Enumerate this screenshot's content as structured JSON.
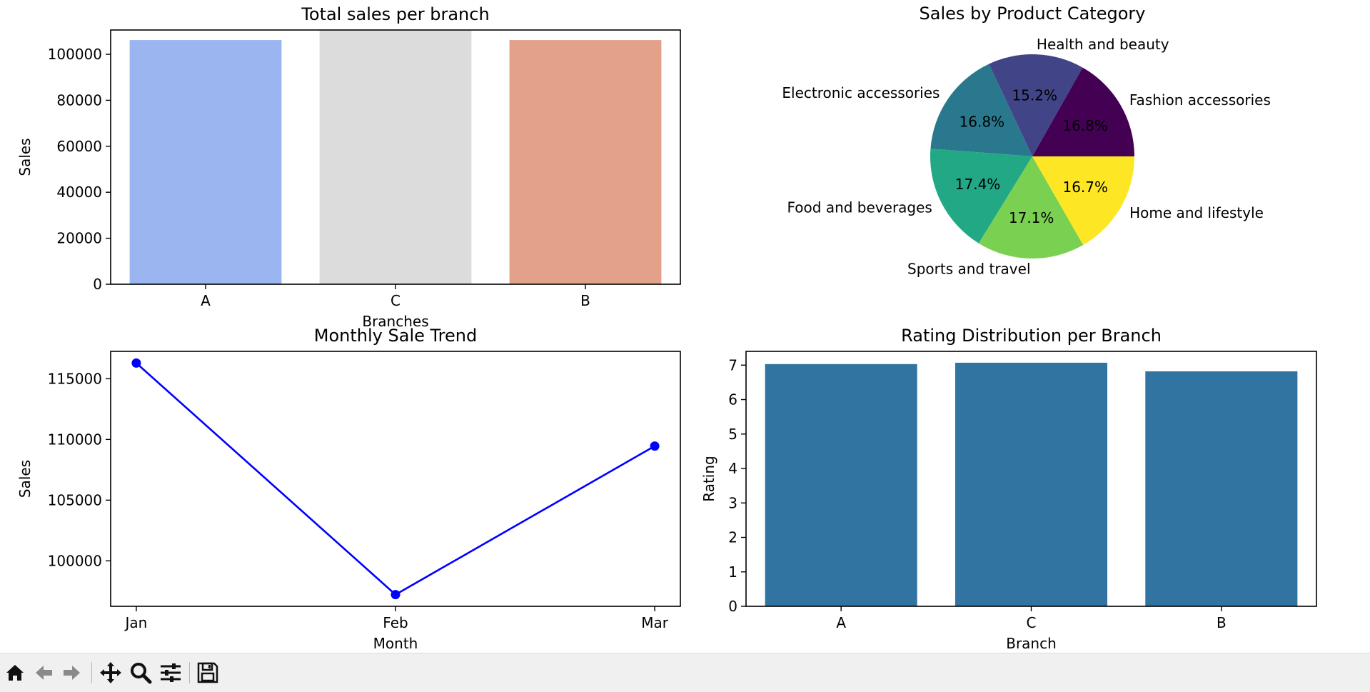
{
  "toolbar": {
    "buttons": [
      {
        "icon": "home-icon"
      },
      {
        "icon": "back-arrow-icon"
      },
      {
        "icon": "forward-arrow-icon"
      },
      {
        "icon": "pan-icon"
      },
      {
        "icon": "zoom-icon"
      },
      {
        "icon": "configure-subplots-icon"
      },
      {
        "icon": "save-icon"
      }
    ]
  },
  "chart_data": [
    {
      "type": "bar",
      "title": "Total sales per branch",
      "xlabel": "Branches",
      "ylabel": "Sales",
      "categories": [
        "A",
        "C",
        "B"
      ],
      "values": [
        106200,
        110568,
        106198
      ],
      "colors": [
        "#9ab5f0",
        "#dcdcdc",
        "#e4a18a"
      ],
      "ylim": [
        0,
        110568
      ],
      "yticks": [
        0,
        20000,
        40000,
        60000,
        80000,
        100000
      ],
      "ytick_labels": [
        "0",
        "20000",
        "40000",
        "60000",
        "80000",
        "100000"
      ],
      "grid": false
    },
    {
      "type": "pie",
      "title": "Sales by Product Category",
      "labels": [
        "Fashion accessories",
        "Health and beauty",
        "Electronic accessories",
        "Food and beverages",
        "Sports and travel",
        "Home and lifestyle"
      ],
      "values": [
        16.8,
        15.2,
        16.8,
        17.4,
        17.1,
        16.7
      ],
      "pct_labels": [
        "16.8%",
        "15.2%",
        "16.8%",
        "17.4%",
        "17.1%",
        "16.7%"
      ],
      "colors": [
        "#440154",
        "#414487",
        "#2a788e",
        "#22a884",
        "#7ad151",
        "#fde725"
      ]
    },
    {
      "type": "line",
      "title": "Monthly Sale Trend",
      "xlabel": "Month",
      "ylabel": "Sales",
      "x": [
        "Jan",
        "Feb",
        "Mar"
      ],
      "values": [
        116292,
        97219,
        109456
      ],
      "color": "#0000ff",
      "ylim": [
        96255,
        117256
      ],
      "yticks": [
        100000,
        105000,
        110000,
        115000
      ],
      "ytick_labels": [
        "100000",
        "105000",
        "110000",
        "115000"
      ],
      "grid": false
    },
    {
      "type": "bar",
      "title": "Rating Distribution per Branch",
      "xlabel": "Branch",
      "ylabel": "Rating",
      "categories": [
        "A",
        "C",
        "B"
      ],
      "values": [
        7.03,
        7.07,
        6.82
      ],
      "colors": [
        "#3274a1",
        "#3274a1",
        "#3274a1"
      ],
      "ylim": [
        0,
        7.4
      ],
      "yticks": [
        0,
        1,
        2,
        3,
        4,
        5,
        6,
        7
      ],
      "ytick_labels": [
        "0",
        "1",
        "2",
        "3",
        "4",
        "5",
        "6",
        "7"
      ],
      "grid": false
    }
  ]
}
